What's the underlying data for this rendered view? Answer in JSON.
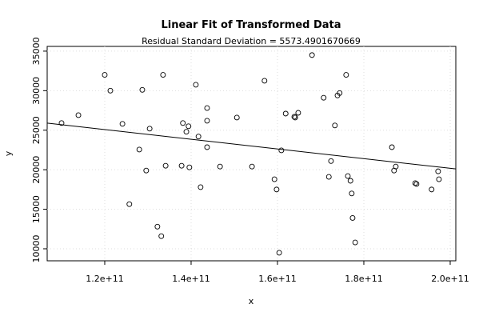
{
  "chart_data": {
    "type": "scatter",
    "title": "Linear Fit of Transformed Data",
    "subtitle": "Residual Standard Deviation =  5573.4901670669",
    "x_label": "x",
    "y_label": "y",
    "xlim": [
      106670000000.0,
      201300000000.0
    ],
    "ylim": [
      8480,
      35600
    ],
    "xticks": [
      {
        "value": 120000000000.0,
        "label": "1.2e+11"
      },
      {
        "value": 140000000000.0,
        "label": "1.4e+11"
      },
      {
        "value": 160000000000.0,
        "label": "1.6e+11"
      },
      {
        "value": 180000000000.0,
        "label": "1.8e+11"
      },
      {
        "value": 200000000000.0,
        "label": "2.0e+11"
      }
    ],
    "yticks": [
      10000,
      15000,
      20000,
      25000,
      30000,
      35000
    ],
    "grid": true,
    "color": "#000000",
    "x": [
      110000000000.0,
      113900000000.0,
      120000000000.0,
      121300000000.0,
      124100000000.0,
      128000000000.0,
      128700000000.0,
      129600000000.0,
      130400000000.0,
      125700000000.0,
      132200000000.0,
      133100000000.0,
      133500000000.0,
      134100000000.0,
      137800000000.0,
      138100000000.0,
      138900000000.0,
      139400000000.0,
      139600000000.0,
      141100000000.0,
      141700000000.0,
      142200000000.0,
      143700000000.0,
      143700000000.0,
      143700000000.0,
      150600000000.0,
      146700000000.0,
      154100000000.0,
      157000000000.0,
      159300000000.0,
      159800000000.0,
      160400000000.0,
      160900000000.0,
      161900000000.0,
      163900000000.0,
      164100000000.0,
      164800000000.0,
      168000000000.0,
      170700000000.0,
      173300000000.0,
      171900000000.0,
      172400000000.0,
      173900000000.0,
      174400000000.0,
      175900000000.0,
      176300000000.0,
      176900000000.0,
      177200000000.0,
      177400000000.0,
      178000000000.0,
      186500000000.0,
      187000000000.0,
      187400000000.0,
      191900000000.0,
      192200000000.0,
      195700000000.0,
      197200000000.0,
      197400000000.0
    ],
    "values": [
      25900,
      26900,
      32000,
      30000,
      25800,
      22550,
      30100,
      19900,
      25200,
      15650,
      12800,
      11600,
      32000,
      20500,
      20500,
      25900,
      24800,
      25500,
      20300,
      30750,
      24200,
      17800,
      22850,
      27800,
      26200,
      26600,
      20400,
      20400,
      31250,
      18800,
      17500,
      9500,
      22450,
      27100,
      26700,
      26600,
      27200,
      34500,
      29100,
      25600,
      19100,
      21100,
      29400,
      29700,
      32000,
      19200,
      18600,
      17000,
      13900,
      10800,
      22850,
      19900,
      20400,
      18300,
      18200,
      17500,
      19800,
      18800
    ],
    "fit": {
      "x": [
        106670000000.0,
        201300000000.0
      ],
      "y": [
        25900,
        20100
      ]
    }
  }
}
